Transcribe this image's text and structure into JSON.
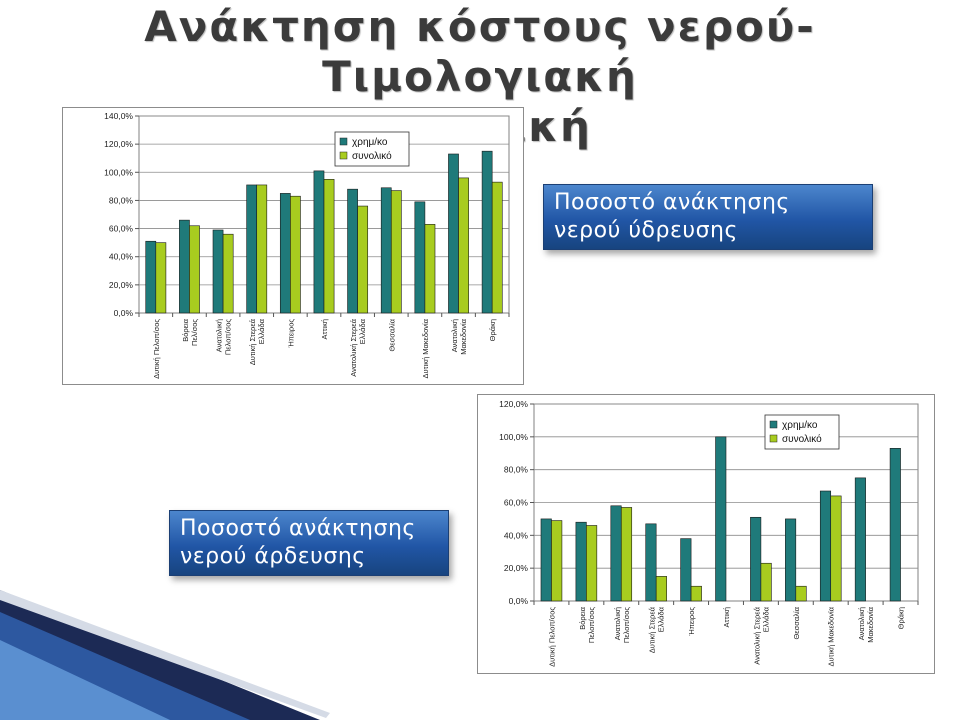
{
  "slide": {
    "title_line1": "Ανάκτηση κόστους νερού- Τιμολογιακή",
    "title_line2": "πολιτική"
  },
  "callouts": {
    "drinking": [
      "Ποσοστό ανάκτησης",
      "νερού ύδρευσης"
    ],
    "irrigation": [
      "Ποσοστό ανάκτησης",
      "νερού άρδευσης"
    ]
  },
  "colors": {
    "series1": "#1f7a7a",
    "series2": "#a8cc1f",
    "callout": "#2a5fae",
    "deco_dark": "#1c2a55",
    "deco_light": "#5a8fd0"
  },
  "chart_data": [
    {
      "type": "bar",
      "categories": [
        [
          "Δυτική Πελοπ/σος"
        ],
        [
          "Βόρεια",
          "Πελ/σος"
        ],
        [
          "Ανατολική",
          "Πελοπ/σος"
        ],
        [
          "Δυτική Στερεά",
          "Ελλάδα"
        ],
        [
          "Ήπειρος"
        ],
        [
          "Αττική"
        ],
        [
          "Ανατολική Στερεά",
          "Ελλάδα"
        ],
        [
          "Θεσσαλία"
        ],
        [
          "Δυτική Μακεδονία"
        ],
        [
          "Ανατολική",
          "Μακεδονία"
        ],
        [
          "Θράκη"
        ]
      ],
      "series": [
        {
          "name": "χρημ/κο",
          "values": [
            51,
            66,
            59,
            91,
            85,
            101,
            88,
            89,
            79,
            113,
            115
          ]
        },
        {
          "name": "συνολικό",
          "values": [
            50,
            62,
            56,
            91,
            83,
            95,
            76,
            87,
            63,
            96,
            93
          ]
        }
      ],
      "ylim": [
        0,
        140
      ],
      "ytick_step": 20,
      "ytick_labels": [
        "0,0%",
        "20,0%",
        "40,0%",
        "60,0%",
        "80,0%",
        "100,0%",
        "120,0%",
        "140,0%"
      ],
      "grid": true,
      "legend": "top-right"
    },
    {
      "type": "bar",
      "categories": [
        [
          "Δυτική Πελοπ/σος"
        ],
        [
          "Βόρεια",
          "Πελοπ/σος"
        ],
        [
          "Ανατολική",
          "Πελοπ/σος"
        ],
        [
          "Δυτική Στερεά",
          "Ελλάδα"
        ],
        [
          "Ήπειρος"
        ],
        [
          "Αττική"
        ],
        [
          "Ανατολική Στερεά",
          "Ελλάδα"
        ],
        [
          "Θεσσαλία"
        ],
        [
          "Δυτική Μακεδονία"
        ],
        [
          "Ανατολική",
          "Μακεδονία"
        ],
        [
          "Θράκη"
        ]
      ],
      "series": [
        {
          "name": "χρημ/κο",
          "values": [
            50,
            48,
            58,
            47,
            38,
            100,
            51,
            50,
            67,
            75,
            93
          ]
        },
        {
          "name": "συνολικό",
          "values": [
            49,
            46,
            57,
            15,
            9,
            null,
            23,
            9,
            64,
            null,
            null
          ]
        }
      ],
      "ylim": [
        0,
        120
      ],
      "ytick_step": 20,
      "ytick_labels": [
        "0,0%",
        "20,0%",
        "40,0%",
        "60,0%",
        "80,0%",
        "100,0%",
        "120,0%"
      ],
      "grid": true,
      "legend": "top-right"
    }
  ]
}
